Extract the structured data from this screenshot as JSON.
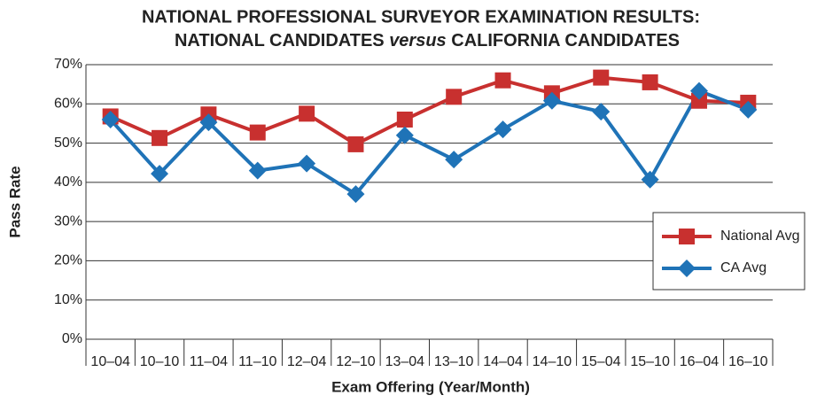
{
  "chart_data": {
    "type": "line",
    "title": {
      "line1": "NATIONAL PROFESSIONAL SURVEYOR EXAMINATION RESULTS:",
      "line2_start": "NATIONAL CANDIDATES ",
      "line2_italic": "versus",
      "line2_end": " CALIFORNIA CANDIDATES"
    },
    "x_label": "Exam Offering (Year/Month)",
    "y_label": "Pass Rate",
    "categories": [
      "10–04",
      "10–10",
      "11–04",
      "11–10",
      "12–04",
      "12–10",
      "13–04",
      "13–10",
      "14–04",
      "14–10",
      "15–04",
      "15–10",
      "16–04",
      "16–10"
    ],
    "series": [
      {
        "name": "National Avg",
        "color": "#c8302f",
        "marker": "square",
        "values": [
          56.8,
          51.3,
          57.3,
          52.7,
          57.5,
          49.7,
          56.0,
          61.8,
          66.0,
          62.7,
          66.7,
          65.5,
          60.8,
          60.3
        ]
      },
      {
        "name": "CA Avg",
        "color": "#1f73b7",
        "marker": "diamond",
        "values": [
          56.0,
          42.2,
          55.3,
          43.0,
          44.8,
          37.0,
          52.0,
          45.8,
          53.5,
          60.8,
          58.0,
          40.7,
          63.3,
          58.5
        ]
      }
    ],
    "ylim": [
      0,
      70
    ],
    "yticks": [
      {
        "value": 0,
        "label": "0%"
      },
      {
        "value": 10,
        "label": "10%"
      },
      {
        "value": 20,
        "label": "20%"
      },
      {
        "value": 30,
        "label": "30%"
      },
      {
        "value": 40,
        "label": "40%"
      },
      {
        "value": 50,
        "label": "50%"
      },
      {
        "value": 60,
        "label": "60%"
      },
      {
        "value": 70,
        "label": "70%"
      }
    ],
    "grid": true,
    "legend": "right"
  }
}
